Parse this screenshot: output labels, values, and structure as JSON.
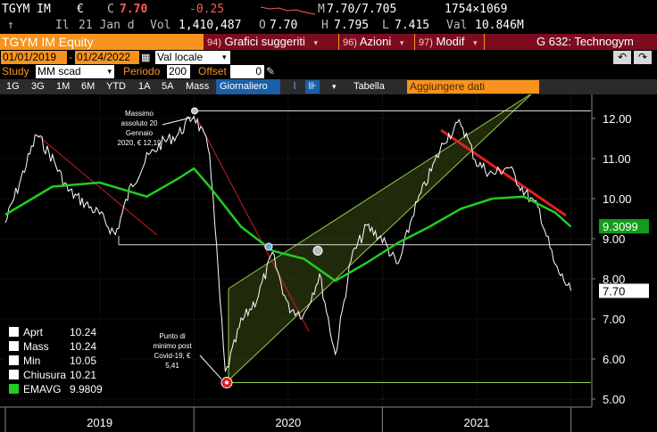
{
  "quote": {
    "ticker": "TGYM IM",
    "currency": "€",
    "last_label": "C",
    "last_value": "7.70",
    "change": "-0.25",
    "sparkline_tag": "",
    "tick_glyph": "↑",
    "time_label": "Il",
    "date": "21 Jan d",
    "volume_label": "Vol",
    "volume": "1,410,487",
    "open_label": "O",
    "open": "7.70",
    "high_label": "H",
    "high": "7.795",
    "low_label": "L",
    "low": "7.415",
    "bid_ask_label": "M",
    "bid_ask": "7.70/7.705",
    "size": "1754×1069",
    "value_label": "Val",
    "value": "10.846M"
  },
  "title_bar": {
    "security": "TGYM IM Equity",
    "menus": [
      {
        "num": "94)",
        "label": "Grafici suggeriti"
      },
      {
        "num": "96)",
        "label": "Azioni"
      },
      {
        "num": "97)",
        "label": "Modif"
      }
    ],
    "chart_code": "G 632: Technogym"
  },
  "dates": {
    "start": "01/01/2019",
    "end": "01/24/2022",
    "axis_setting": "Val locale"
  },
  "study": {
    "label": "Study",
    "study_value": "MM scad",
    "period_label": "Periodo",
    "period_value": "200",
    "offset_label": "Offset",
    "offset_value": "0"
  },
  "toolbar": {
    "ranges": [
      "1G",
      "3G",
      "1M",
      "6M",
      "YTD",
      "1A",
      "5A",
      "Mass"
    ],
    "frequency": "Giornaliero",
    "table": "Tabella",
    "add_data": "Aggiungere dati"
  },
  "colors": {
    "orange": "#f7931e",
    "maroon": "#7c0d1e",
    "ema_green": "#22cc22",
    "channel_green": "#8fd14f",
    "trend_red": "#e02020"
  },
  "annotations": {
    "high_note": [
      "Massimo",
      "assoluto 20",
      "Gennaio",
      "2020, € 12,19"
    ],
    "low_note": [
      "Punto di",
      "minimo post",
      "Covid-19, €",
      "5,41"
    ]
  },
  "legend": [
    {
      "name": "Aprt",
      "value": "10.24",
      "color": "#ffffff"
    },
    {
      "name": "Mass",
      "value": "10.24",
      "color": "#ffffff"
    },
    {
      "name": "Min",
      "value": "10.05",
      "color": "#ffffff"
    },
    {
      "name": "Chiusura",
      "value": "10.21",
      "color": "#ffffff"
    },
    {
      "name": "EMAVG",
      "value": "9.9809",
      "color": "#22cc22"
    }
  ],
  "chart_data": {
    "type": "line",
    "title": "",
    "xlabel": "",
    "ylabel": "",
    "ylim": [
      4.8,
      12.6
    ],
    "y_ticks": [
      "12.00",
      "11.00",
      "10.00",
      "9.00",
      "8.00",
      "7.00",
      "6.00",
      "5.00"
    ],
    "x_labels": [
      "2019",
      "2020",
      "2021"
    ],
    "last_price_tag": "7.70",
    "ema_tag": "9.3099",
    "series": [
      {
        "name": "Chiusura",
        "color": "#ffffff",
        "x": [
          "2019-01",
          "2019-02",
          "2019-03",
          "2019-04",
          "2019-05",
          "2019-06",
          "2019-07",
          "2019-08",
          "2019-09",
          "2019-10",
          "2019-11",
          "2019-12",
          "2020-01",
          "2020-02",
          "2020-03",
          "2020-04",
          "2020-05",
          "2020-06",
          "2020-07",
          "2020-08",
          "2020-09",
          "2020-10",
          "2020-11",
          "2020-12",
          "2021-01",
          "2021-02",
          "2021-03",
          "2021-04",
          "2021-05",
          "2021-06",
          "2021-07",
          "2021-08",
          "2021-09",
          "2021-10",
          "2021-11",
          "2021-12",
          "2022-01"
        ],
        "values": [
          9.4,
          10.5,
          11.6,
          11.0,
          10.2,
          9.9,
          9.6,
          9.1,
          10.3,
          11.0,
          11.4,
          11.6,
          12.1,
          11.2,
          5.6,
          6.9,
          7.5,
          8.6,
          7.3,
          7.1,
          8.1,
          6.1,
          8.5,
          9.3,
          9.0,
          8.3,
          9.7,
          10.6,
          11.5,
          11.9,
          10.9,
          10.6,
          10.8,
          10.2,
          9.7,
          8.3,
          7.7
        ]
      },
      {
        "name": "EMAVG",
        "color": "#22cc22",
        "x": [
          "2019-01",
          "2019-04",
          "2019-07",
          "2019-10",
          "2019-12",
          "2020-01",
          "2020-02",
          "2020-04",
          "2020-06",
          "2020-08",
          "2020-10",
          "2020-12",
          "2021-02",
          "2021-04",
          "2021-06",
          "2021-08",
          "2021-10",
          "2021-12",
          "2022-01"
        ],
        "values": [
          9.6,
          10.3,
          10.4,
          10.05,
          10.5,
          10.75,
          10.3,
          9.3,
          8.7,
          8.5,
          7.95,
          8.4,
          8.9,
          9.3,
          9.75,
          10.0,
          10.05,
          9.65,
          9.3
        ]
      }
    ],
    "lines": [
      {
        "name": "max_line",
        "value": 12.19
      },
      {
        "name": "support_9",
        "value": 8.85
      },
      {
        "name": "min_line",
        "value": 5.41
      }
    ]
  }
}
